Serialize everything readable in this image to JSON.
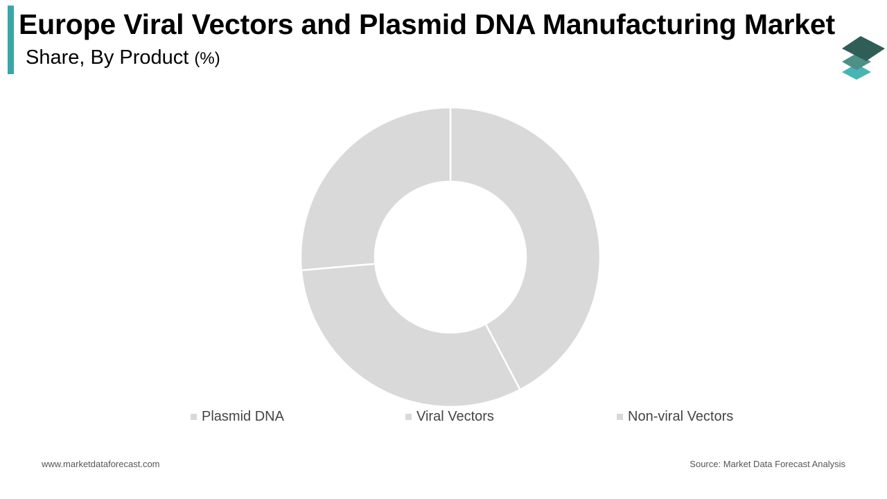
{
  "header": {
    "title": "Europe Viral Vectors and Plasmid DNA Manufacturing Market",
    "subtitle": "Share, By Product",
    "subtitle_unit": "(%)"
  },
  "logo": {
    "icon": "stacked-layers-icon",
    "colors": [
      "#2f5e58",
      "#4e8f88",
      "#48b5b5"
    ]
  },
  "chart_data": {
    "type": "pie",
    "variant": "donut",
    "title": "Share, By Product",
    "categories": [
      "Plasmid DNA",
      "Viral Vectors",
      "Non-viral Vectors"
    ],
    "values": [
      42.3,
      31.3,
      26.4
    ],
    "unit": "%",
    "colors": [
      "#d9d9d9",
      "#d9d9d9",
      "#d9d9d9"
    ],
    "legend_position": "bottom"
  },
  "legend": {
    "items": [
      {
        "label": "Plasmid DNA"
      },
      {
        "label": "Viral Vectors"
      },
      {
        "label": "Non-viral Vectors"
      }
    ]
  },
  "footer": {
    "website": "www.marketdataforecast.com",
    "source": "Source: Market Data Forecast Analysis"
  }
}
